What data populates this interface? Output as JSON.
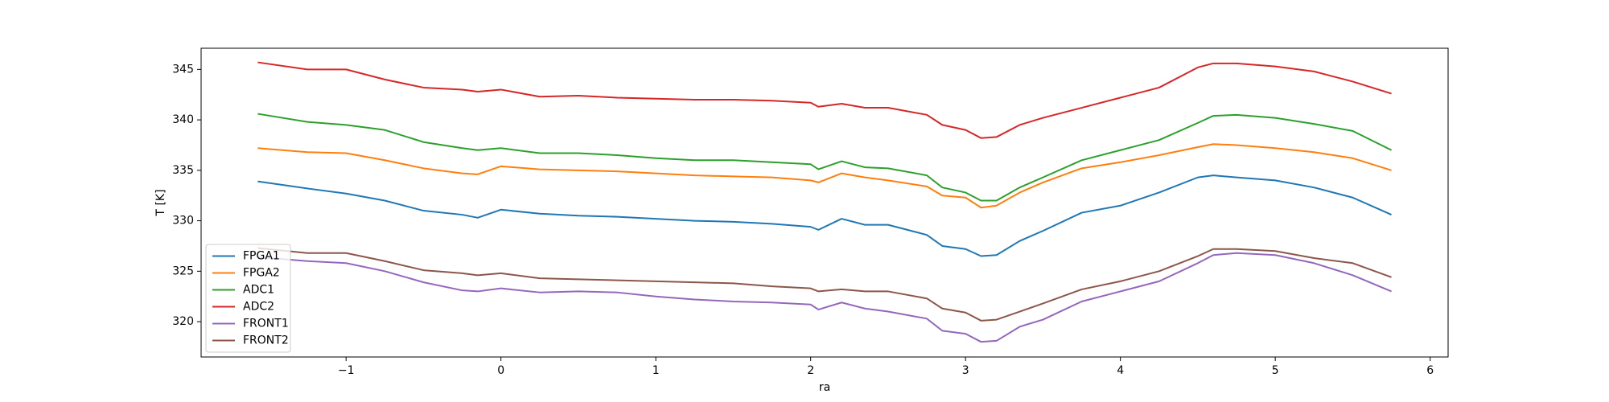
{
  "chart_data": {
    "type": "line",
    "x_label": "ra",
    "y_label": "T [K]",
    "x": [
      -1.57,
      -1.25,
      -1.0,
      -0.75,
      -0.5,
      -0.25,
      -0.15,
      0,
      0.25,
      0.5,
      0.75,
      1.0,
      1.25,
      1.5,
      1.75,
      2.0,
      2.05,
      2.2,
      2.35,
      2.5,
      2.75,
      2.85,
      3.0,
      3.1,
      3.2,
      3.35,
      3.5,
      3.75,
      4.0,
      4.25,
      4.5,
      4.6,
      4.75,
      5.0,
      5.25,
      5.5,
      5.75
    ],
    "series": [
      {
        "name": "FPGA1",
        "color": "#1f77b4",
        "values": [
          333.9,
          333.2,
          332.7,
          332.0,
          331.0,
          330.6,
          330.3,
          331.1,
          330.7,
          330.5,
          330.4,
          330.2,
          330.0,
          329.9,
          329.7,
          329.4,
          329.1,
          330.2,
          329.6,
          329.6,
          328.6,
          327.5,
          327.2,
          326.5,
          326.6,
          328.0,
          329.0,
          330.8,
          331.5,
          332.8,
          334.3,
          334.5,
          334.3,
          334.0,
          333.3,
          332.3,
          330.6
        ]
      },
      {
        "name": "FPGA2",
        "color": "#ff7f0e",
        "values": [
          337.2,
          336.8,
          336.7,
          336.0,
          335.2,
          334.7,
          334.6,
          335.4,
          335.1,
          335.0,
          334.9,
          334.7,
          334.5,
          334.4,
          334.3,
          334.0,
          333.8,
          334.7,
          334.3,
          334.0,
          333.4,
          332.5,
          332.3,
          331.3,
          331.5,
          332.8,
          333.8,
          335.2,
          335.8,
          336.5,
          337.3,
          337.6,
          337.5,
          337.2,
          336.8,
          336.2,
          335.0
        ]
      },
      {
        "name": "ADC1",
        "color": "#2ca02c",
        "values": [
          340.6,
          339.8,
          339.5,
          339.0,
          337.8,
          337.2,
          337.0,
          337.2,
          336.7,
          336.7,
          336.5,
          336.2,
          336.0,
          336.0,
          335.8,
          335.6,
          335.1,
          335.9,
          335.3,
          335.2,
          334.5,
          333.3,
          332.8,
          332.0,
          332.0,
          333.3,
          334.3,
          336.0,
          337.0,
          338.0,
          339.7,
          340.4,
          340.5,
          340.2,
          339.6,
          338.9,
          337.0
        ]
      },
      {
        "name": "ADC2",
        "color": "#d62728",
        "values": [
          345.7,
          345.0,
          345.0,
          344.0,
          343.2,
          343.0,
          342.8,
          343.0,
          342.3,
          342.4,
          342.2,
          342.1,
          342.0,
          342.0,
          341.9,
          341.7,
          341.3,
          341.6,
          341.2,
          341.2,
          340.5,
          339.5,
          339.0,
          338.2,
          338.3,
          339.5,
          340.2,
          341.2,
          342.2,
          343.2,
          345.2,
          345.6,
          345.6,
          345.3,
          344.8,
          343.8,
          342.6
        ]
      },
      {
        "name": "FRONT1",
        "color": "#9467bd",
        "values": [
          326.4,
          326.0,
          325.8,
          325.0,
          323.9,
          323.1,
          323.0,
          323.3,
          322.9,
          323.0,
          322.9,
          322.5,
          322.2,
          322.0,
          321.9,
          321.7,
          321.2,
          321.9,
          321.3,
          321.0,
          320.3,
          319.1,
          318.8,
          318.0,
          318.1,
          319.5,
          320.2,
          322.0,
          323.0,
          324.0,
          325.8,
          326.6,
          326.8,
          326.6,
          325.8,
          324.6,
          323.0
        ]
      },
      {
        "name": "FRONT2",
        "color": "#8c564b",
        "values": [
          327.3,
          326.8,
          326.8,
          326.0,
          325.1,
          324.8,
          324.6,
          324.8,
          324.3,
          324.2,
          324.1,
          324.0,
          323.9,
          323.8,
          323.5,
          323.3,
          323.0,
          323.2,
          323.0,
          323.0,
          322.3,
          321.3,
          320.9,
          320.1,
          320.2,
          321.0,
          321.8,
          323.2,
          324.0,
          325.0,
          326.5,
          327.2,
          327.2,
          327.0,
          326.3,
          325.8,
          324.4
        ]
      }
    ],
    "xlim": [
      -1.936,
      6.116
    ],
    "ylim": [
      316.5,
      347.1
    ],
    "xticks": [
      {
        "value": -1,
        "label": "−1"
      },
      0,
      1,
      2,
      3,
      4,
      5,
      6
    ],
    "yticks": [
      320,
      325,
      330,
      335,
      340,
      345
    ],
    "legend": "lower left",
    "grid": false
  }
}
